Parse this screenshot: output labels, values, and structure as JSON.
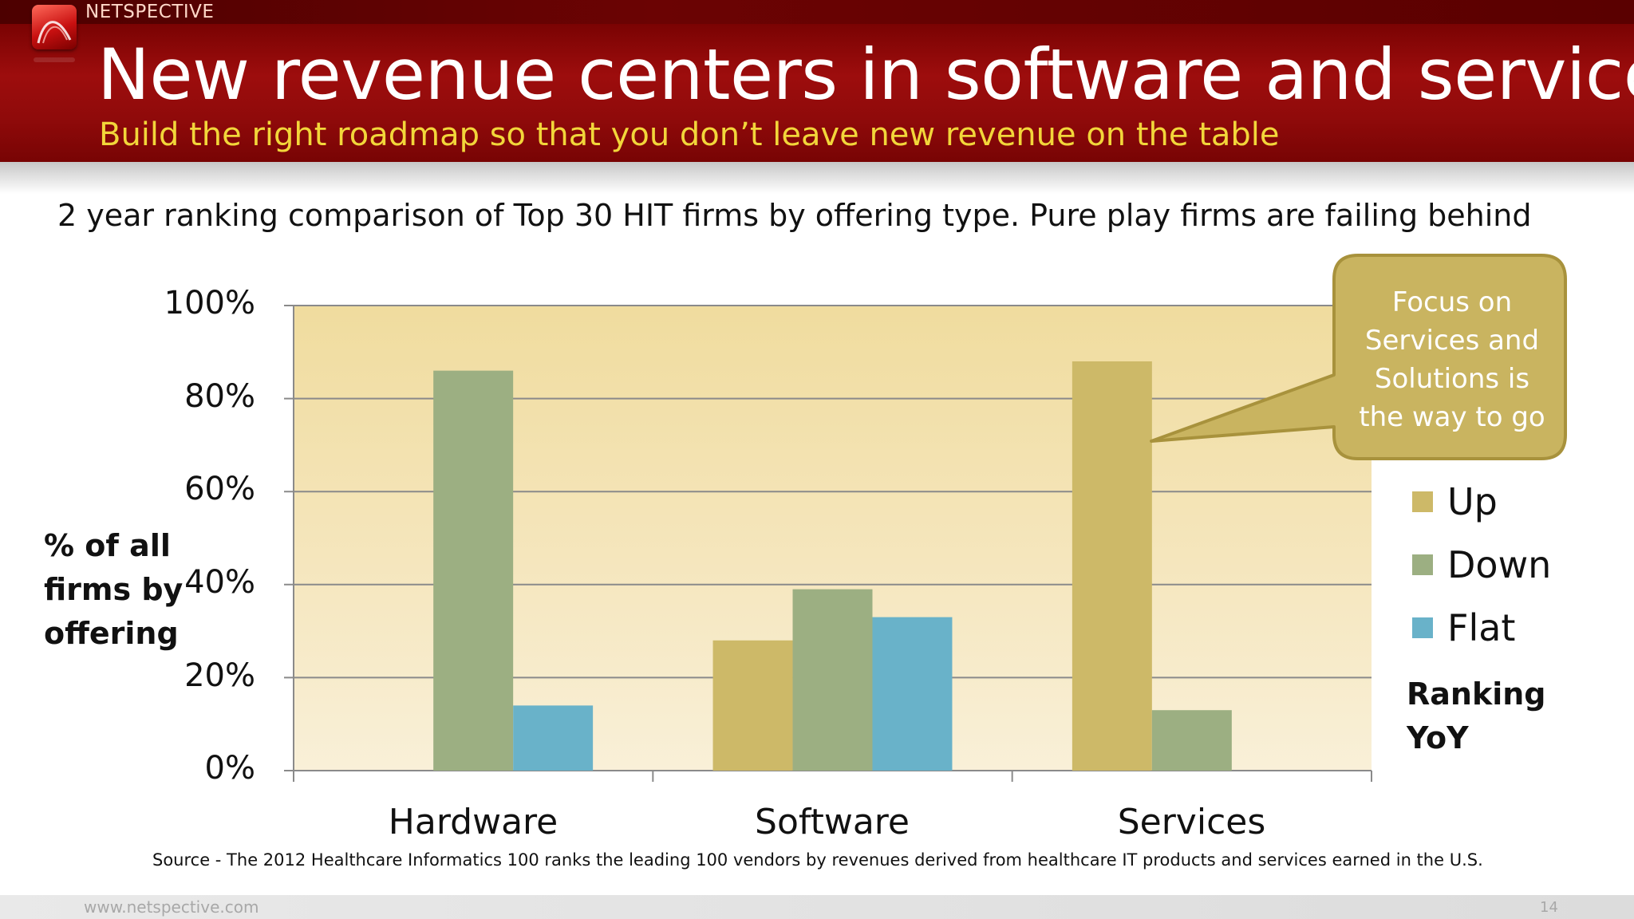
{
  "header": {
    "brand": "NETSPECTIVE",
    "title": "New revenue centers in software and services",
    "subtitle": "Build the right roadmap so that you don’t leave new revenue on the table"
  },
  "lead_text": "2 year ranking comparison of Top 30 HIT firms by offering type. Pure play firms are failing behind",
  "callout": {
    "text": "Focus on\nServices and\nSolutions is\nthe way to go"
  },
  "source": "Source - The 2012 Healthcare Informatics 100 ranks the leading 100 vendors by revenues derived from healthcare IT products and services earned in the U.S.",
  "footer": {
    "url": "www.netspective.com",
    "page": "14"
  },
  "colors": {
    "header_red": "#9d0d0d",
    "subtitle_yellow": "#f2d63a",
    "callout_fill": "#c9b460",
    "up": "#cdb968",
    "down": "#9caf82",
    "flat": "#69b2c9"
  },
  "chart_data": {
    "type": "bar",
    "categories": [
      "Hardware",
      "Software",
      "Services"
    ],
    "series": [
      {
        "name": "Up",
        "values": [
          0,
          28,
          88
        ]
      },
      {
        "name": "Down",
        "values": [
          86,
          39,
          13
        ]
      },
      {
        "name": "Flat",
        "values": [
          14,
          33,
          0
        ]
      }
    ],
    "ylim": [
      0,
      100
    ],
    "yticks": [
      "0%",
      "20%",
      "40%",
      "60%",
      "80%",
      "100%"
    ],
    "ylabel": "% of all\nfirms by\noffering",
    "legend_title": "Ranking\nYoY",
    "legend_position": "right",
    "grid": true
  }
}
